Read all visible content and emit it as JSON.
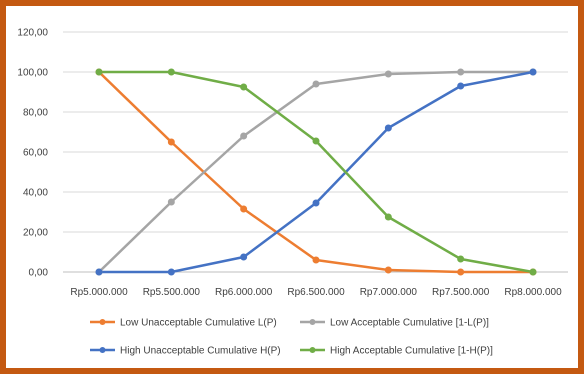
{
  "chart_data": {
    "type": "line",
    "title": "",
    "xlabel": "",
    "ylabel": "",
    "categories": [
      "Rp5.000.000",
      "Rp5.500.000",
      "Rp6.000.000",
      "Rp6.500.000",
      "Rp7.000.000",
      "Rp7.500.000",
      "Rp8.000.000"
    ],
    "ylim": [
      0,
      120
    ],
    "yticks": [
      "0,00",
      "20,00",
      "40,00",
      "60,00",
      "80,00",
      "100,00",
      "120,00"
    ],
    "grid": true,
    "legend_position": "bottom",
    "series": [
      {
        "name": "Low Unacceptable Cumulative L(P)",
        "color": "#ed7d31",
        "values": [
          100,
          65,
          31.5,
          6,
          1,
          0,
          0
        ]
      },
      {
        "name": "Low Acceptable Cumulative [1-L(P)]",
        "color": "#a5a5a5",
        "values": [
          0,
          35,
          68,
          94,
          99,
          100,
          100
        ]
      },
      {
        "name": "High Unacceptable Cumulative H(P)",
        "color": "#4472c4",
        "values": [
          0,
          0,
          7.5,
          34.5,
          72,
          93,
          100
        ]
      },
      {
        "name": "High Acceptable Cumulative [1-H(P)]",
        "color": "#70ad47",
        "values": [
          100,
          100,
          92.5,
          65.5,
          27.5,
          6.5,
          0
        ]
      }
    ]
  }
}
